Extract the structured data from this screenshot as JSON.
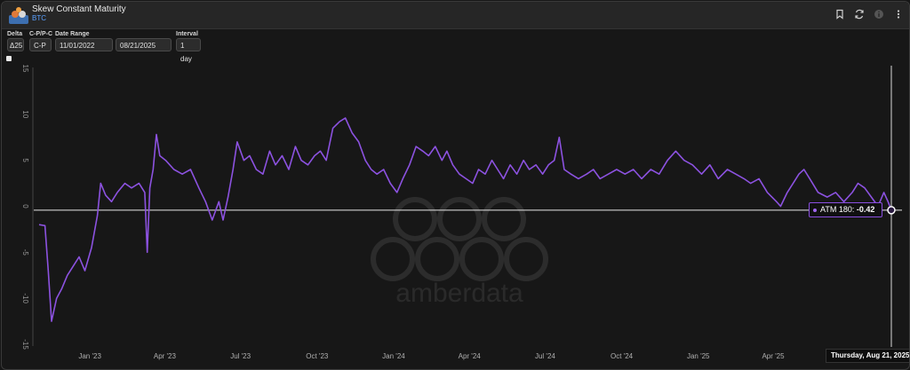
{
  "header": {
    "title": "Skew Constant Maturity",
    "subtitle": "BTC",
    "icons": [
      "bookmark-icon",
      "refresh-icon",
      "info-icon",
      "more-vertical-icon"
    ]
  },
  "controls": {
    "delta": {
      "label": "Delta",
      "value": "Δ25"
    },
    "cppc": {
      "label": "C-P/P-C",
      "value": "C-P"
    },
    "date_range": {
      "label": "Date Range",
      "start": "11/01/2022",
      "end": "08/21/2025"
    },
    "interval": {
      "label": "Interval",
      "value": "1 day"
    }
  },
  "tooltip": {
    "label": "ATM 180:",
    "value": "-0.42"
  },
  "crosshair_date": "Thursday, Aug 21, 2025",
  "watermark": "amberdata",
  "colors": {
    "line": "#8c52e0",
    "tooltip_border": "#8a4fe0",
    "background": "#171717"
  },
  "chart_data": {
    "type": "line",
    "x_range": [
      "2022-11-01",
      "2025-08-21"
    ],
    "xticks": [
      {
        "label": "Jan '23",
        "date": "2023-01-01"
      },
      {
        "label": "Apr '23",
        "date": "2023-04-01"
      },
      {
        "label": "Jul '23",
        "date": "2023-07-01"
      },
      {
        "label": "Oct '23",
        "date": "2023-10-01"
      },
      {
        "label": "Jan '24",
        "date": "2024-01-01"
      },
      {
        "label": "Apr '24",
        "date": "2024-04-01"
      },
      {
        "label": "Jul '24",
        "date": "2024-07-01"
      },
      {
        "label": "Oct '24",
        "date": "2024-10-01"
      },
      {
        "label": "Jan '25",
        "date": "2025-01-01"
      },
      {
        "label": "Apr '25",
        "date": "2025-04-01"
      }
    ],
    "ylim": [
      -15,
      15
    ],
    "yticks": [
      "15",
      "10",
      "5",
      "0",
      "-5",
      "-10",
      "-15"
    ],
    "grid": false,
    "series": [
      {
        "name": "ATM 180",
        "points": [
          [
            "2022-11-01",
            -2.0
          ],
          [
            "2022-11-08",
            -2.1
          ],
          [
            "2022-11-12",
            -7.0
          ],
          [
            "2022-11-16",
            -12.5
          ],
          [
            "2022-11-22",
            -10.0
          ],
          [
            "2022-11-28",
            -9.0
          ],
          [
            "2022-12-05",
            -7.5
          ],
          [
            "2022-12-12",
            -6.5
          ],
          [
            "2022-12-19",
            -5.5
          ],
          [
            "2022-12-26",
            -7.0
          ],
          [
            "2023-01-03",
            -4.5
          ],
          [
            "2023-01-10",
            -1.0
          ],
          [
            "2023-01-14",
            2.5
          ],
          [
            "2023-01-20",
            1.2
          ],
          [
            "2023-01-27",
            0.5
          ],
          [
            "2023-02-03",
            1.5
          ],
          [
            "2023-02-12",
            2.5
          ],
          [
            "2023-02-20",
            2.0
          ],
          [
            "2023-03-01",
            2.5
          ],
          [
            "2023-03-08",
            1.5
          ],
          [
            "2023-03-11",
            -5.0
          ],
          [
            "2023-03-14",
            2.0
          ],
          [
            "2023-03-18",
            4.0
          ],
          [
            "2023-03-22",
            7.8
          ],
          [
            "2023-03-26",
            5.5
          ],
          [
            "2023-04-02",
            5.0
          ],
          [
            "2023-04-12",
            4.0
          ],
          [
            "2023-04-22",
            3.5
          ],
          [
            "2023-05-02",
            4.0
          ],
          [
            "2023-05-12",
            2.0
          ],
          [
            "2023-05-20",
            0.5
          ],
          [
            "2023-05-28",
            -1.5
          ],
          [
            "2023-06-05",
            0.5
          ],
          [
            "2023-06-10",
            -1.5
          ],
          [
            "2023-06-16",
            1.0
          ],
          [
            "2023-06-22",
            4.0
          ],
          [
            "2023-06-27",
            7.0
          ],
          [
            "2023-07-05",
            5.0
          ],
          [
            "2023-07-12",
            5.5
          ],
          [
            "2023-07-20",
            4.0
          ],
          [
            "2023-07-28",
            3.5
          ],
          [
            "2023-08-05",
            6.0
          ],
          [
            "2023-08-12",
            4.5
          ],
          [
            "2023-08-20",
            5.5
          ],
          [
            "2023-08-28",
            4.0
          ],
          [
            "2023-09-05",
            6.5
          ],
          [
            "2023-09-12",
            5.0
          ],
          [
            "2023-09-20",
            4.5
          ],
          [
            "2023-09-28",
            5.5
          ],
          [
            "2023-10-05",
            6.0
          ],
          [
            "2023-10-12",
            5.0
          ],
          [
            "2023-10-20",
            8.5
          ],
          [
            "2023-10-28",
            9.2
          ],
          [
            "2023-11-04",
            9.6
          ],
          [
            "2023-11-12",
            8.0
          ],
          [
            "2023-11-20",
            7.0
          ],
          [
            "2023-11-28",
            5.0
          ],
          [
            "2023-12-05",
            4.0
          ],
          [
            "2023-12-12",
            3.5
          ],
          [
            "2023-12-20",
            4.0
          ],
          [
            "2023-12-28",
            2.5
          ],
          [
            "2024-01-05",
            1.5
          ],
          [
            "2024-01-12",
            3.0
          ],
          [
            "2024-01-20",
            4.5
          ],
          [
            "2024-01-28",
            6.5
          ],
          [
            "2024-02-05",
            6.0
          ],
          [
            "2024-02-12",
            5.5
          ],
          [
            "2024-02-20",
            6.5
          ],
          [
            "2024-02-28",
            5.0
          ],
          [
            "2024-03-05",
            6.0
          ],
          [
            "2024-03-12",
            4.5
          ],
          [
            "2024-03-20",
            3.5
          ],
          [
            "2024-03-28",
            3.0
          ],
          [
            "2024-04-05",
            2.5
          ],
          [
            "2024-04-12",
            4.0
          ],
          [
            "2024-04-20",
            3.5
          ],
          [
            "2024-04-28",
            5.0
          ],
          [
            "2024-05-05",
            4.0
          ],
          [
            "2024-05-12",
            3.0
          ],
          [
            "2024-05-20",
            4.5
          ],
          [
            "2024-05-28",
            3.5
          ],
          [
            "2024-06-05",
            5.0
          ],
          [
            "2024-06-12",
            4.0
          ],
          [
            "2024-06-20",
            4.5
          ],
          [
            "2024-06-28",
            3.5
          ],
          [
            "2024-07-05",
            4.5
          ],
          [
            "2024-07-12",
            5.0
          ],
          [
            "2024-07-18",
            7.5
          ],
          [
            "2024-07-24",
            4.0
          ],
          [
            "2024-08-01",
            3.5
          ],
          [
            "2024-08-10",
            3.0
          ],
          [
            "2024-08-20",
            3.5
          ],
          [
            "2024-08-28",
            4.0
          ],
          [
            "2024-09-05",
            3.0
          ],
          [
            "2024-09-15",
            3.5
          ],
          [
            "2024-09-25",
            4.0
          ],
          [
            "2024-10-05",
            3.5
          ],
          [
            "2024-10-15",
            4.0
          ],
          [
            "2024-10-25",
            3.0
          ],
          [
            "2024-11-05",
            4.0
          ],
          [
            "2024-11-15",
            3.5
          ],
          [
            "2024-11-25",
            5.0
          ],
          [
            "2024-12-05",
            6.0
          ],
          [
            "2024-12-15",
            5.0
          ],
          [
            "2024-12-25",
            4.5
          ],
          [
            "2025-01-05",
            3.5
          ],
          [
            "2025-01-15",
            4.5
          ],
          [
            "2025-01-25",
            3.0
          ],
          [
            "2025-02-05",
            4.0
          ],
          [
            "2025-02-15",
            3.5
          ],
          [
            "2025-02-25",
            3.0
          ],
          [
            "2025-03-05",
            2.5
          ],
          [
            "2025-03-15",
            3.0
          ],
          [
            "2025-03-25",
            1.5
          ],
          [
            "2025-04-05",
            0.5
          ],
          [
            "2025-04-10",
            0.0
          ],
          [
            "2025-04-18",
            1.5
          ],
          [
            "2025-04-25",
            2.5
          ],
          [
            "2025-05-02",
            3.5
          ],
          [
            "2025-05-08",
            4.0
          ],
          [
            "2025-05-15",
            3.0
          ],
          [
            "2025-05-25",
            1.5
          ],
          [
            "2025-06-05",
            1.0
          ],
          [
            "2025-06-15",
            1.5
          ],
          [
            "2025-06-25",
            0.5
          ],
          [
            "2025-07-05",
            1.5
          ],
          [
            "2025-07-12",
            2.5
          ],
          [
            "2025-07-20",
            2.0
          ],
          [
            "2025-07-28",
            1.0
          ],
          [
            "2025-08-05",
            0.0
          ],
          [
            "2025-08-12",
            1.5
          ],
          [
            "2025-08-17",
            0.5
          ],
          [
            "2025-08-21",
            -0.42
          ]
        ]
      }
    ]
  }
}
